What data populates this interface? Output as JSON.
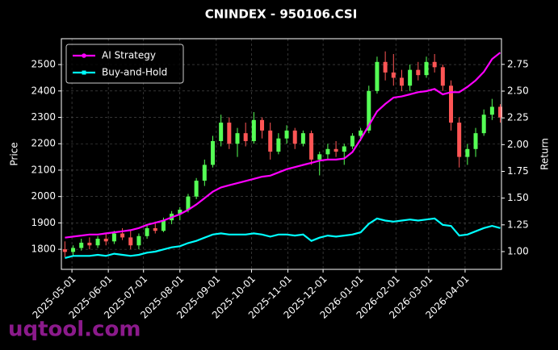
{
  "chart_data": {
    "type": "candlestick",
    "title": "CNINDEX - 950106.CSI",
    "ylabel": "Price",
    "y2label": "Return",
    "x": [
      "2025-04-25",
      "2025-05-02",
      "2025-05-09",
      "2025-05-16",
      "2025-05-23",
      "2025-05-30",
      "2025-06-06",
      "2025-06-13",
      "2025-06-20",
      "2025-06-27",
      "2025-07-04",
      "2025-07-11",
      "2025-07-18",
      "2025-07-25",
      "2025-08-01",
      "2025-08-08",
      "2025-08-15",
      "2025-08-22",
      "2025-08-29",
      "2025-09-05",
      "2025-09-12",
      "2025-09-19",
      "2025-09-26",
      "2025-10-03",
      "2025-10-10",
      "2025-10-17",
      "2025-10-24",
      "2025-10-31",
      "2025-11-07",
      "2025-11-14",
      "2025-11-21",
      "2025-11-28",
      "2025-12-05",
      "2025-12-12",
      "2025-12-19",
      "2025-12-26",
      "2026-01-02",
      "2026-01-09",
      "2026-01-16",
      "2026-01-23",
      "2026-01-30",
      "2026-02-06",
      "2026-02-13",
      "2026-02-20",
      "2026-02-27",
      "2026-03-06",
      "2026-03-13",
      "2026-03-20",
      "2026-03-27",
      "2026-04-03",
      "2026-04-10",
      "2026-04-17",
      "2026-04-24",
      "2026-05-01"
    ],
    "open": [
      1800,
      1790,
      1805,
      1825,
      1815,
      1840,
      1830,
      1860,
      1845,
      1815,
      1850,
      1880,
      1870,
      1910,
      1935,
      1950,
      2000,
      2060,
      2120,
      2210,
      2280,
      2200,
      2240,
      2210,
      2290,
      2250,
      2170,
      2220,
      2250,
      2200,
      2240,
      2140,
      2160,
      2180,
      2170,
      2190,
      2230,
      2250,
      2400,
      2510,
      2470,
      2450,
      2420,
      2480,
      2460,
      2510,
      2490,
      2420,
      2280,
      2150,
      2180,
      2240,
      2310,
      2340
    ],
    "high": [
      1830,
      1815,
      1840,
      1845,
      1850,
      1860,
      1870,
      1880,
      1870,
      1860,
      1890,
      1905,
      1920,
      1945,
      1960,
      2010,
      2070,
      2140,
      2230,
      2310,
      2300,
      2260,
      2280,
      2320,
      2300,
      2280,
      2240,
      2270,
      2260,
      2250,
      2250,
      2170,
      2200,
      2210,
      2200,
      2240,
      2260,
      2420,
      2530,
      2550,
      2540,
      2480,
      2500,
      2510,
      2530,
      2540,
      2500,
      2440,
      2300,
      2200,
      2260,
      2330,
      2370,
      2350
    ],
    "low": [
      1770,
      1775,
      1795,
      1800,
      1805,
      1815,
      1820,
      1835,
      1800,
      1800,
      1840,
      1860,
      1865,
      1895,
      1910,
      1940,
      1990,
      2040,
      2110,
      2190,
      2180,
      2150,
      2190,
      2200,
      2220,
      2140,
      2160,
      2200,
      2180,
      2190,
      2120,
      2080,
      2140,
      2150,
      2120,
      2180,
      2210,
      2240,
      2390,
      2440,
      2420,
      2400,
      2400,
      2440,
      2450,
      2470,
      2400,
      2250,
      2110,
      2120,
      2150,
      2230,
      2290,
      2280
    ],
    "close": [
      1790,
      1805,
      1825,
      1815,
      1840,
      1830,
      1860,
      1845,
      1815,
      1850,
      1880,
      1870,
      1910,
      1935,
      1950,
      2000,
      2060,
      2120,
      2210,
      2280,
      2200,
      2240,
      2210,
      2290,
      2250,
      2170,
      2220,
      2250,
      2200,
      2240,
      2140,
      2160,
      2180,
      2170,
      2190,
      2230,
      2250,
      2400,
      2510,
      2470,
      2450,
      2420,
      2480,
      2460,
      2510,
      2490,
      2420,
      2280,
      2150,
      2180,
      2240,
      2310,
      2340,
      2300
    ],
    "up_color": "#55ff55",
    "down_color": "#ff5555",
    "series": [
      {
        "name": "AI Strategy",
        "color": "#ff00ff",
        "axis": "y2",
        "marker": "circle",
        "values": [
          1.13,
          1.14,
          1.15,
          1.16,
          1.16,
          1.17,
          1.18,
          1.19,
          1.2,
          1.22,
          1.25,
          1.27,
          1.29,
          1.32,
          1.35,
          1.39,
          1.44,
          1.5,
          1.56,
          1.6,
          1.62,
          1.64,
          1.66,
          1.68,
          1.7,
          1.71,
          1.74,
          1.77,
          1.79,
          1.81,
          1.83,
          1.85,
          1.86,
          1.86,
          1.87,
          1.93,
          2.05,
          2.18,
          2.31,
          2.38,
          2.44,
          2.45,
          2.47,
          2.49,
          2.5,
          2.52,
          2.47,
          2.49,
          2.49,
          2.54,
          2.6,
          2.68,
          2.8,
          2.86
        ]
      },
      {
        "name": "Buy-and-Hold",
        "color": "#00ffff",
        "axis": "y2",
        "marker": "square",
        "values": [
          0.94,
          0.96,
          0.96,
          0.96,
          0.97,
          0.96,
          0.98,
          0.97,
          0.96,
          0.97,
          0.99,
          1.0,
          1.02,
          1.04,
          1.05,
          1.08,
          1.1,
          1.13,
          1.16,
          1.17,
          1.16,
          1.16,
          1.16,
          1.17,
          1.16,
          1.14,
          1.16,
          1.16,
          1.15,
          1.16,
          1.1,
          1.13,
          1.15,
          1.14,
          1.15,
          1.16,
          1.18,
          1.26,
          1.31,
          1.29,
          1.28,
          1.29,
          1.3,
          1.29,
          1.3,
          1.31,
          1.25,
          1.24,
          1.15,
          1.16,
          1.19,
          1.22,
          1.24,
          1.22
        ]
      }
    ],
    "xlim": [
      "2025-04-22",
      "2026-05-02"
    ],
    "xticks": [
      "2025-05-01",
      "2025-06-01",
      "2025-07-01",
      "2025-08-01",
      "2025-09-01",
      "2025-10-01",
      "2025-11-01",
      "2025-12-01",
      "2026-01-01",
      "2026-02-01",
      "2026-03-01",
      "2026-04-01"
    ],
    "ylim": [
      1724,
      2598
    ],
    "yticks": [
      1800,
      1900,
      2000,
      2100,
      2200,
      2300,
      2400,
      2500
    ],
    "y2lim": [
      0.834,
      2.99
    ],
    "y2ticks": [
      {
        "value": 1,
        "label": "1.00"
      },
      {
        "value": 1.25,
        "label": "1.25"
      },
      {
        "value": 1.5,
        "label": "1.50"
      },
      {
        "value": 1.75,
        "label": "1.75"
      },
      {
        "value": 2,
        "label": "2.00"
      },
      {
        "value": 2.25,
        "label": "2.25"
      },
      {
        "value": 2.5,
        "label": "2.50"
      },
      {
        "value": 2.75,
        "label": "2.75"
      }
    ],
    "grid": true,
    "legend": "upper left"
  },
  "watermark": "uqtool.com"
}
